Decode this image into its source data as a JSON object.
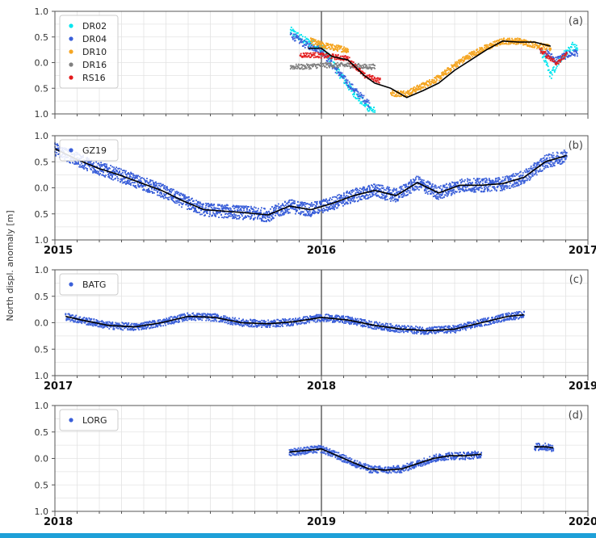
{
  "ylabel": "North displ. anomaly [m]",
  "colors": {
    "DR02": "#00e5ee",
    "DR04": "#3a5fd9",
    "DR10": "#f5a623",
    "DR16": "#808080",
    "RS16": "#e31a1c",
    "GZ19": "#3a5fd9",
    "BATG": "#3a5fd9",
    "LORG": "#3a5fd9",
    "smooth": "#000000",
    "vline": "#555555",
    "grid": "#e3e3e3",
    "bottom_bar": "#1ea0d8"
  },
  "chart_data": [
    {
      "type": "scatter",
      "panel_label": "(a)",
      "ylabel": "",
      "ylim": [
        -1.0,
        1.0
      ],
      "ytick_labels": [
        "1.0",
        "0.5",
        "0.0",
        "0.5",
        "1.0"
      ],
      "year_labels": [],
      "grid": true,
      "vline_x": 0.5,
      "legend": [
        "DR02",
        "DR04",
        "DR10",
        "DR16",
        "RS16"
      ],
      "legend_position": "top-left",
      "series": [
        {
          "name": "DR02",
          "spread": 0.08,
          "density": 2,
          "segments": [
            {
              "x": [
                0.442,
                0.47,
                0.5,
                0.52,
                0.55,
                0.57,
                0.585,
                0.6
              ],
              "y": [
                0.62,
                0.42,
                0.3,
                0.0,
                -0.45,
                -0.7,
                -0.85,
                -0.95
              ]
            },
            {
              "x": [
                0.91,
                0.93,
                0.95,
                0.97,
                0.98
              ],
              "y": [
                0.3,
                -0.25,
                0.1,
                0.32,
                0.25
              ]
            }
          ]
        },
        {
          "name": "DR04",
          "spread": 0.07,
          "density": 2,
          "segments": [
            {
              "x": [
                0.442,
                0.47,
                0.5,
                0.52,
                0.55,
                0.57,
                0.59
              ],
              "y": [
                0.55,
                0.35,
                0.25,
                -0.05,
                -0.4,
                -0.62,
                -0.8
              ]
            },
            {
              "x": [
                0.92,
                0.94,
                0.96,
                0.98
              ],
              "y": [
                0.2,
                0.05,
                0.15,
                0.2
              ]
            }
          ]
        },
        {
          "name": "DR10",
          "spread": 0.06,
          "density": 3,
          "segments": [
            {
              "x": [
                0.48,
                0.5,
                0.52,
                0.55
              ],
              "y": [
                0.42,
                0.35,
                0.3,
                0.25
              ]
            },
            {
              "x": [
                0.63,
                0.66,
                0.69,
                0.72,
                0.75,
                0.78,
                0.81,
                0.84,
                0.87,
                0.9,
                0.93
              ],
              "y": [
                -0.6,
                -0.6,
                -0.45,
                -0.3,
                -0.05,
                0.15,
                0.3,
                0.42,
                0.42,
                0.35,
                0.28
              ]
            }
          ]
        },
        {
          "name": "DR16",
          "spread": 0.05,
          "density": 2,
          "segments": [
            {
              "x": [
                0.442,
                0.47,
                0.5,
                0.53,
                0.55,
                0.58,
                0.6
              ],
              "y": [
                -0.08,
                -0.08,
                -0.05,
                -0.05,
                -0.05,
                -0.08,
                -0.08
              ]
            }
          ]
        },
        {
          "name": "RS16",
          "spread": 0.05,
          "density": 2,
          "segments": [
            {
              "x": [
                0.46,
                0.49,
                0.52,
                0.55,
                0.58,
                0.61
              ],
              "y": [
                0.15,
                0.15,
                0.12,
                0.08,
                -0.25,
                -0.35
              ]
            },
            {
              "x": [
                0.91,
                0.94,
                0.96
              ],
              "y": [
                0.25,
                0.0,
                0.15
              ]
            }
          ]
        }
      ],
      "smooth": [
        {
          "x": [
            0.475,
            0.5,
            0.52,
            0.55,
            0.58,
            0.6,
            0.63,
            0.66,
            0.69,
            0.72,
            0.75,
            0.78,
            0.81,
            0.84,
            0.87,
            0.9,
            0.93
          ],
          "y": [
            0.28,
            0.28,
            0.12,
            0.05,
            -0.25,
            -0.4,
            -0.5,
            -0.68,
            -0.55,
            -0.4,
            -0.15,
            0.05,
            0.25,
            0.42,
            0.4,
            0.4,
            0.32
          ]
        }
      ]
    },
    {
      "type": "scatter",
      "panel_label": "(b)",
      "ylabel": "",
      "ylim": [
        -1.0,
        1.0
      ],
      "ytick_labels": [
        "1.0",
        "0.5",
        "0.0",
        "0.5",
        "1.0"
      ],
      "year_labels": [
        "2015",
        "2016",
        "2017"
      ],
      "grid": true,
      "vline_x": 0.5,
      "legend": [
        "GZ19"
      ],
      "legend_position": "top-left",
      "series": [
        {
          "name": "GZ19",
          "spread": 0.13,
          "density": 4,
          "segments": [
            {
              "x": [
                0.0,
                0.04,
                0.08,
                0.12,
                0.16,
                0.2,
                0.24,
                0.28,
                0.32,
                0.36,
                0.4,
                0.44,
                0.48,
                0.52,
                0.56,
                0.6,
                0.64,
                0.68,
                0.72,
                0.76,
                0.8,
                0.84,
                0.88,
                0.92,
                0.96
              ],
              "y": [
                0.75,
                0.55,
                0.38,
                0.25,
                0.1,
                -0.05,
                -0.25,
                -0.42,
                -0.45,
                -0.48,
                -0.52,
                -0.35,
                -0.42,
                -0.3,
                -0.15,
                -0.05,
                -0.15,
                0.1,
                -0.1,
                0.05,
                0.05,
                0.08,
                0.2,
                0.5,
                0.62
              ]
            }
          ]
        }
      ],
      "smooth": [
        {
          "x": [
            0.0,
            0.04,
            0.08,
            0.12,
            0.16,
            0.2,
            0.24,
            0.28,
            0.32,
            0.36,
            0.4,
            0.44,
            0.48,
            0.52,
            0.56,
            0.6,
            0.64,
            0.68,
            0.72,
            0.76,
            0.8,
            0.84,
            0.88,
            0.92,
            0.96
          ],
          "y": [
            0.75,
            0.55,
            0.38,
            0.25,
            0.1,
            -0.05,
            -0.25,
            -0.42,
            -0.45,
            -0.48,
            -0.52,
            -0.35,
            -0.42,
            -0.3,
            -0.15,
            -0.05,
            -0.15,
            0.1,
            -0.1,
            0.05,
            0.05,
            0.08,
            0.2,
            0.5,
            0.62
          ]
        }
      ]
    },
    {
      "type": "scatter",
      "panel_label": "(c)",
      "ylabel": "",
      "ylim": [
        -1.0,
        1.0
      ],
      "ytick_labels": [
        "1.0",
        "0.5",
        "0.0",
        "0.5",
        "1.0"
      ],
      "year_labels": [
        "2017",
        "2018",
        "2019"
      ],
      "grid": true,
      "vline_x": 0.5,
      "legend": [
        "BATG"
      ],
      "legend_position": "top-left",
      "series": [
        {
          "name": "BATG",
          "spread": 0.07,
          "density": 3,
          "segments": [
            {
              "x": [
                0.02,
                0.05,
                0.1,
                0.15,
                0.2,
                0.25,
                0.3,
                0.35,
                0.4,
                0.45,
                0.5,
                0.55,
                0.6,
                0.65,
                0.7,
                0.75,
                0.8,
                0.85,
                0.88
              ],
              "y": [
                0.12,
                0.05,
                -0.05,
                -0.08,
                0.0,
                0.12,
                0.1,
                0.0,
                -0.02,
                0.02,
                0.1,
                0.05,
                -0.05,
                -0.12,
                -0.15,
                -0.12,
                0.0,
                0.12,
                0.15
              ]
            }
          ]
        }
      ],
      "smooth": [
        {
          "x": [
            0.02,
            0.05,
            0.1,
            0.15,
            0.2,
            0.25,
            0.3,
            0.35,
            0.4,
            0.45,
            0.5,
            0.55,
            0.6,
            0.65,
            0.7,
            0.75,
            0.8,
            0.85,
            0.88
          ],
          "y": [
            0.12,
            0.05,
            -0.05,
            -0.08,
            0.0,
            0.12,
            0.1,
            0.0,
            -0.02,
            0.02,
            0.1,
            0.05,
            -0.05,
            -0.12,
            -0.15,
            -0.12,
            0.0,
            0.12,
            0.15
          ]
        }
      ]
    },
    {
      "type": "scatter",
      "panel_label": "(d)",
      "ylabel": "",
      "ylim": [
        -1.0,
        1.0
      ],
      "ytick_labels": [
        "1.0",
        "0.5",
        "0.0",
        "0.5",
        "1.0"
      ],
      "year_labels": [
        "2018",
        "2019",
        "2020"
      ],
      "grid": true,
      "vline_x": 0.5,
      "legend": [
        "LORG"
      ],
      "legend_position": "top-left",
      "series": [
        {
          "name": "LORG",
          "spread": 0.07,
          "density": 3,
          "segments": [
            {
              "x": [
                0.44,
                0.47,
                0.5,
                0.53,
                0.56,
                0.59,
                0.62,
                0.65,
                0.68,
                0.71,
                0.74,
                0.77,
                0.8
              ],
              "y": [
                0.12,
                0.15,
                0.18,
                0.05,
                -0.08,
                -0.2,
                -0.22,
                -0.2,
                -0.1,
                0.0,
                0.05,
                0.05,
                0.08
              ]
            },
            {
              "x": [
                0.9,
                0.92,
                0.935
              ],
              "y": [
                0.22,
                0.22,
                0.2
              ]
            }
          ]
        }
      ],
      "smooth": [
        {
          "x": [
            0.44,
            0.47,
            0.5,
            0.53,
            0.56,
            0.59,
            0.62,
            0.65,
            0.68,
            0.71,
            0.74,
            0.77,
            0.8
          ],
          "y": [
            0.12,
            0.15,
            0.18,
            0.05,
            -0.08,
            -0.2,
            -0.22,
            -0.2,
            -0.1,
            0.0,
            0.05,
            0.05,
            0.08
          ]
        },
        {
          "x": [
            0.9,
            0.92,
            0.935
          ],
          "y": [
            0.22,
            0.22,
            0.2
          ]
        }
      ]
    }
  ]
}
